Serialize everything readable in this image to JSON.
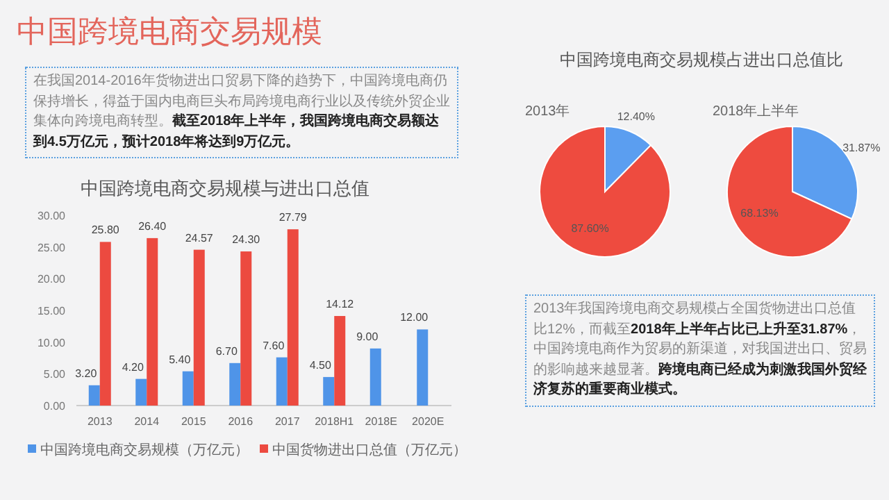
{
  "chart_data": [
    {
      "type": "other",
      "title": "中国跨境电商交易规模",
      "annotations": [
        "在我国2014-2016年货物进出口贸易下降的趋势下，中国跨境电商仍保持增长，得益于国内电商巨头布局跨境电商行业以及传统外贸企业集体向跨境电商转型。",
        "截至2018年上半年，我国跨境电商交易额达到4.5万亿元，预计2018年将达到9万亿元。"
      ]
    },
    {
      "type": "bar",
      "title": "中国跨境电商交易规模与进出口总值",
      "categories": [
        "2013",
        "2014",
        "2015",
        "2016",
        "2017",
        "2018H1",
        "2018E",
        "2020E"
      ],
      "series": [
        {
          "name": "中国跨境电商交易规模（万亿元）",
          "color": "#4f94e8",
          "values": [
            3.2,
            4.2,
            5.4,
            6.7,
            7.6,
            4.5,
            9.0,
            12.0
          ],
          "value_labels": [
            "3.20",
            "4.20",
            "5.40",
            "6.70",
            "7.60",
            "4.50",
            "9.00",
            "12.00"
          ]
        },
        {
          "name": "中国货物进出口总值（万亿元）",
          "color": "#ec4a40",
          "values": [
            25.8,
            26.4,
            24.57,
            24.3,
            27.79,
            14.12,
            null,
            null
          ],
          "value_labels": [
            "25.80",
            "26.40",
            "24.57",
            "24.30",
            "27.79",
            "14.12",
            null,
            null
          ]
        }
      ],
      "ylim": [
        0,
        30
      ],
      "yticks": [
        {
          "value": 0,
          "label": "0.00"
        },
        {
          "value": 5,
          "label": "5.00"
        },
        {
          "value": 10,
          "label": "10.00"
        },
        {
          "value": 15,
          "label": "15.00"
        },
        {
          "value": 20,
          "label": "20.00"
        },
        {
          "value": 25,
          "label": "25.00"
        },
        {
          "value": 30,
          "label": "30.00"
        }
      ],
      "grid": false,
      "legend": "bottom"
    },
    {
      "type": "pie",
      "title": "中国跨境电商交易规模占进出口总值比",
      "subtitle": "2013年",
      "categories": [
        null,
        null
      ],
      "values": [
        12.4,
        87.6
      ],
      "colors": [
        "#5b9ef0",
        "#ee4b3f"
      ],
      "value_labels": [
        "12.40%",
        "87.60%"
      ]
    },
    {
      "type": "pie",
      "subtitle": "2018年上半年",
      "categories": [
        null,
        null
      ],
      "values": [
        31.87,
        68.13
      ],
      "colors": [
        "#5b9ef0",
        "#ee4b3f"
      ],
      "value_labels": [
        "31.87%",
        "68.13%"
      ]
    },
    {
      "type": "other",
      "annotations": [
        "2013年我国跨境电商交易规模占全国货物进出口总值比12%，而截至",
        "2018年上半年占比已上升至31.87%",
        "，中国跨境电商作为贸易的新渠道，对我国进出口、贸易的影响越来越显著。",
        "跨境电商已经成为刺激我国外贸经济复苏的重要商业模式。"
      ]
    }
  ]
}
